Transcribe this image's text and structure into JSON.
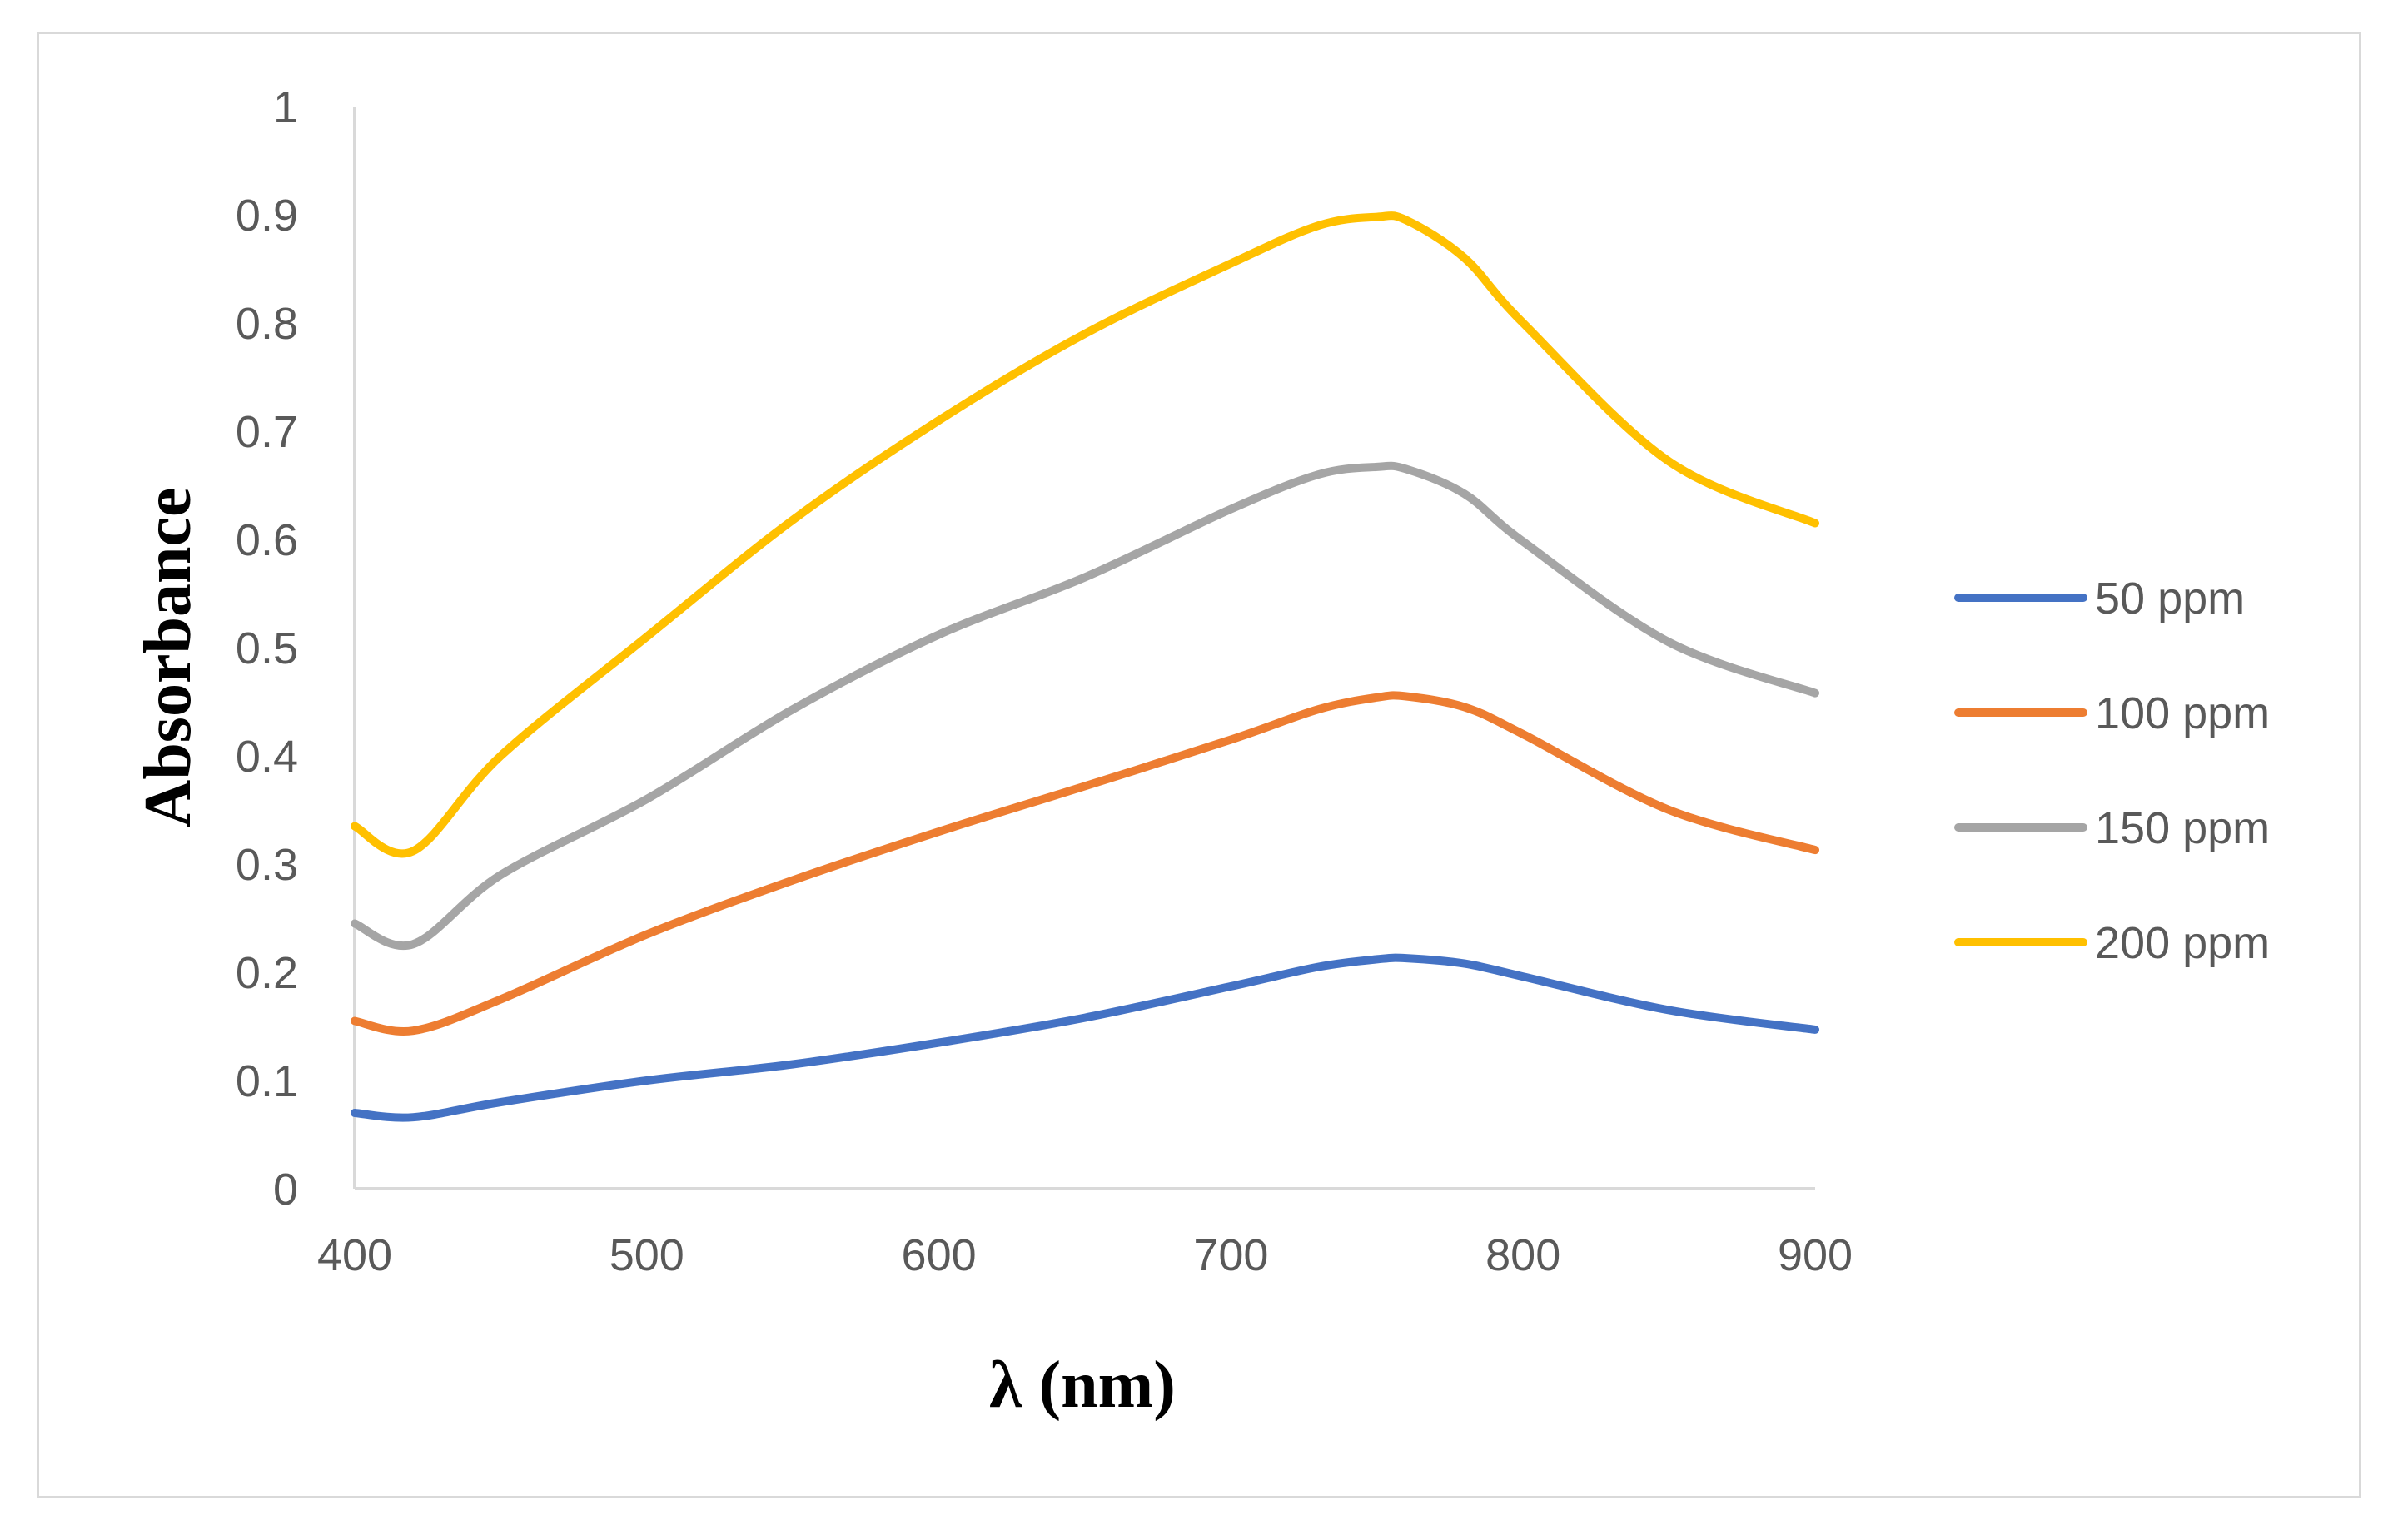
{
  "chart_data": {
    "type": "line",
    "title": "",
    "xlabel": "λ (nm)",
    "ylabel": "Absorbance",
    "xlim": [
      400,
      900
    ],
    "ylim": [
      0,
      1
    ],
    "x_ticks": [
      400,
      500,
      600,
      700,
      800,
      900
    ],
    "y_ticks": [
      0,
      0.1,
      0.2,
      0.3,
      0.4,
      0.5,
      0.6,
      0.7,
      0.8,
      0.9,
      1
    ],
    "grid": false,
    "legend_position": "right",
    "x": [
      400,
      420,
      450,
      500,
      550,
      600,
      650,
      700,
      730,
      750,
      760,
      780,
      800,
      850,
      900
    ],
    "series": [
      {
        "name": "50 ppm",
        "color": "#4472C4",
        "values": [
          0.07,
          0.066,
          0.08,
          0.1,
          0.115,
          0.135,
          0.158,
          0.187,
          0.205,
          0.212,
          0.213,
          0.208,
          0.196,
          0.165,
          0.147
        ]
      },
      {
        "name": "100 ppm",
        "color": "#ED7D31",
        "values": [
          0.155,
          0.146,
          0.175,
          0.235,
          0.285,
          0.33,
          0.372,
          0.415,
          0.443,
          0.454,
          0.455,
          0.445,
          0.42,
          0.35,
          0.313
        ]
      },
      {
        "name": "150 ppm",
        "color": "#A5A5A5",
        "values": [
          0.245,
          0.226,
          0.29,
          0.36,
          0.443,
          0.512,
          0.565,
          0.628,
          0.66,
          0.667,
          0.665,
          0.642,
          0.598,
          0.505,
          0.458
        ]
      },
      {
        "name": "200 ppm",
        "color": "#FFC000",
        "values": [
          0.335,
          0.312,
          0.4,
          0.51,
          0.618,
          0.71,
          0.79,
          0.855,
          0.89,
          0.898,
          0.895,
          0.86,
          0.8,
          0.672,
          0.615
        ]
      }
    ]
  }
}
